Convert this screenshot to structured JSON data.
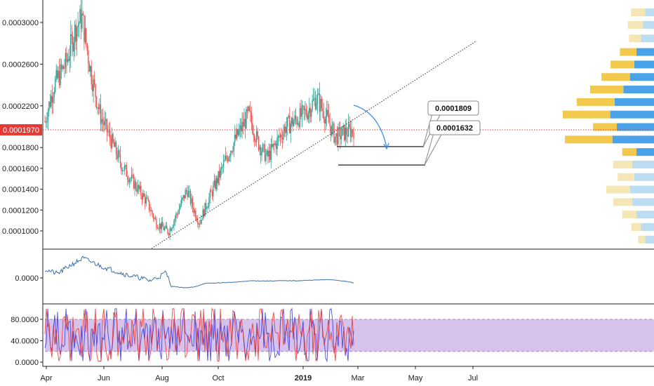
{
  "chart_data": [
    {
      "type": "candlestick",
      "panel": "price",
      "y_ticks": [
        "0.0003000",
        "0.0002600",
        "0.0002200",
        "0.0001800",
        "0.0001600",
        "0.0001400",
        "0.0001200",
        "0.0001000"
      ],
      "y_tick_values": [
        0.0003,
        0.00026,
        0.00022,
        0.00018,
        0.00016,
        0.00014,
        0.00012,
        0.0001
      ],
      "x_ticks": [
        "Apr",
        "Jun",
        "Aug",
        "Oct",
        "2019",
        "Mar",
        "May",
        "Jul"
      ],
      "x_tick_bold": [
        false,
        false,
        false,
        false,
        true,
        false,
        false,
        false
      ],
      "current_price": {
        "label": "0.0001970",
        "value": 0.000197
      },
      "price_path": [
        [
          0,
          0.000205
        ],
        [
          0.03,
          0.00024
        ],
        [
          0.07,
          0.000262
        ],
        [
          0.1,
          0.000295
        ],
        [
          0.12,
          0.000305
        ],
        [
          0.15,
          0.00025
        ],
        [
          0.18,
          0.00021
        ],
        [
          0.21,
          0.00019
        ],
        [
          0.25,
          0.000162
        ],
        [
          0.29,
          0.000145
        ],
        [
          0.33,
          0.000128
        ],
        [
          0.36,
          0.000108
        ],
        [
          0.4,
          9.9e-05
        ],
        [
          0.43,
          0.000118
        ],
        [
          0.46,
          0.00014
        ],
        [
          0.48,
          0.000122
        ],
        [
          0.5,
          0.000108
        ],
        [
          0.53,
          0.00013
        ],
        [
          0.56,
          0.00015
        ],
        [
          0.6,
          0.000178
        ],
        [
          0.63,
          0.000195
        ],
        [
          0.66,
          0.000212
        ],
        [
          0.69,
          0.000185
        ],
        [
          0.72,
          0.00017
        ],
        [
          0.75,
          0.000185
        ],
        [
          0.78,
          0.0002
        ],
        [
          0.82,
          0.000208
        ],
        [
          0.85,
          0.000215
        ],
        [
          0.88,
          0.000228
        ],
        [
          0.91,
          0.00021
        ],
        [
          0.94,
          0.00019
        ],
        [
          0.97,
          0.000194
        ],
        [
          1.0,
          0.000197
        ]
      ],
      "price_range": [
        8.9e-05,
        0.000322
      ],
      "annotations": {
        "callouts": [
          "0.0001809",
          "0.0001632"
        ],
        "callout_values": [
          0.0001809,
          0.0001632
        ],
        "trendline": "dotted ascending support line",
        "forecast_arrow": "curved arrow pointing down to lower target"
      },
      "colors": {
        "up": "#26a69a",
        "down": "#ef5350",
        "price_line": "#e53935",
        "trendline": "#333333",
        "arrow": "#2e86de"
      },
      "volume_profile": [
        [
          0.00031,
          0.3,
          0.2
        ],
        [
          0.000298,
          0.32,
          0.25
        ],
        [
          0.000285,
          0.25,
          0.3
        ],
        [
          0.000272,
          0.35,
          0.4
        ],
        [
          0.00026,
          0.5,
          0.45
        ],
        [
          0.000248,
          0.6,
          0.55
        ],
        [
          0.000236,
          0.7,
          0.7
        ],
        [
          0.000224,
          0.8,
          0.9
        ],
        [
          0.000212,
          1.0,
          1.0
        ],
        [
          0.0002,
          0.5,
          0.85
        ],
        [
          0.000188,
          1.0,
          0.95
        ],
        [
          0.000176,
          0.3,
          0.4
        ],
        [
          0.000164,
          0.4,
          0.5
        ],
        [
          0.000152,
          0.35,
          0.45
        ],
        [
          0.00014,
          0.5,
          0.55
        ],
        [
          0.000128,
          0.4,
          0.5
        ],
        [
          0.000116,
          0.3,
          0.4
        ],
        [
          0.000104,
          0.2,
          0.3
        ],
        [
          9.2e-05,
          0.15,
          0.2
        ]
      ]
    },
    {
      "type": "line",
      "panel": "oscillator",
      "y_ticks": [
        "0.0000"
      ],
      "y_tick_values": [
        0
      ],
      "series": [
        {
          "color": "#3d6fa8",
          "points": [
            [
              0,
              0.6
            ],
            [
              0.04,
              0.3
            ],
            [
              0.08,
              0.9
            ],
            [
              0.12,
              1.4
            ],
            [
              0.15,
              1.1
            ],
            [
              0.18,
              0.8
            ],
            [
              0.22,
              0.5
            ],
            [
              0.26,
              0.2
            ],
            [
              0.3,
              0.0
            ],
            [
              0.33,
              -0.2
            ],
            [
              0.36,
              0.1
            ],
            [
              0.38,
              0.4
            ],
            [
              0.4,
              -0.6
            ],
            [
              0.44,
              -0.7
            ],
            [
              0.47,
              -0.65
            ],
            [
              0.5,
              -0.4
            ],
            [
              0.55,
              -0.35
            ],
            [
              0.6,
              -0.3
            ],
            [
              0.65,
              -0.2
            ],
            [
              0.7,
              -0.22
            ],
            [
              0.75,
              -0.2
            ],
            [
              0.8,
              -0.2
            ],
            [
              0.85,
              -0.15
            ],
            [
              0.9,
              -0.12
            ],
            [
              0.93,
              -0.2
            ],
            [
              0.96,
              -0.3
            ],
            [
              0.97,
              -0.38
            ]
          ]
        }
      ],
      "ylim": [
        -1,
        2
      ]
    },
    {
      "type": "line",
      "panel": "stochastic",
      "y_ticks": [
        "80.0000",
        "40.0000",
        "0.0000"
      ],
      "y_tick_values": [
        80,
        40,
        0
      ],
      "series": [
        {
          "color": "#3b3bdc"
        },
        {
          "color": "#e53935"
        }
      ],
      "band": [
        20,
        80
      ],
      "band_color": "#c9aee6",
      "ylim": [
        -5,
        100
      ]
    }
  ]
}
